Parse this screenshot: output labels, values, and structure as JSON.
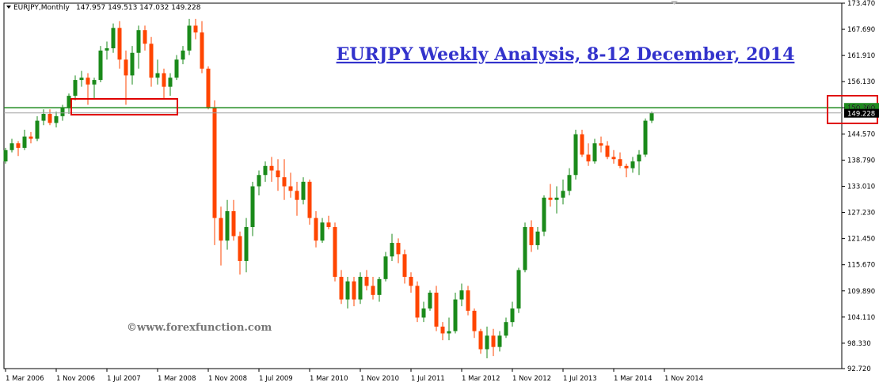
{
  "header": {
    "symbol": "EURJPY,Monthly",
    "ohlc": "147.957 149.513 147.032 149.228"
  },
  "colors": {
    "bull": "#1a8a1a",
    "bear": "#ff4500",
    "resistance_line": "#1e8a1e",
    "current_line": "#a0a0a0",
    "highlight_box": "#e00000",
    "title": "#3333cc",
    "watermark": "#777777"
  },
  "icons": {
    "collapse_marker": "triangle-down-icon",
    "top_marker": "triangle-down-icon"
  },
  "chart_data": {
    "type": "candlestick",
    "title": "EURJPY Weekly Analysis, 8-12 December, 2014",
    "watermark": "©www.forexfunction.com",
    "y_ticks": [
      "173.470",
      "167.690",
      "161.910",
      "156.130",
      "150.360",
      "144.570",
      "138.790",
      "133.010",
      "127.230",
      "121.450",
      "115.670",
      "109.890",
      "104.110",
      "98.330",
      "92.720"
    ],
    "ylim": [
      92.72,
      173.47
    ],
    "x_ticks": [
      "1 Mar 2006",
      "1 Nov 2006",
      "1 Jul 2007",
      "1 Mar 2008",
      "1 Nov 2008",
      "1 Jul 2009",
      "1 Mar 2010",
      "1 Nov 2010",
      "1 Jul 2011",
      "1 Mar 2012",
      "1 Nov 2012",
      "1 Jul 2013",
      "1 Mar 2014",
      "1 Nov 2014"
    ],
    "resistance_level": 150.36,
    "current_price": 149.228,
    "price_labels": [
      "150.360",
      "149.228"
    ],
    "ohlc": [
      [
        138.5,
        141.5,
        138.0,
        141.0
      ],
      [
        141.0,
        143.5,
        140.5,
        142.5
      ],
      [
        142.5,
        143.0,
        139.7,
        141.5
      ],
      [
        141.5,
        145.5,
        141.0,
        144.0
      ],
      [
        144.0,
        145.0,
        142.5,
        143.5
      ],
      [
        143.5,
        148.5,
        143.0,
        147.5
      ],
      [
        147.5,
        150.0,
        146.5,
        149.0
      ],
      [
        149.0,
        150.0,
        146.5,
        147.0
      ],
      [
        147.0,
        149.5,
        146.0,
        148.5
      ],
      [
        148.5,
        151.0,
        147.5,
        150.5
      ],
      [
        150.5,
        153.5,
        149.0,
        153.0
      ],
      [
        153.0,
        157.5,
        152.0,
        156.5
      ],
      [
        156.5,
        158.5,
        155.0,
        157.0
      ],
      [
        157.0,
        158.0,
        151.0,
        155.5
      ],
      [
        155.5,
        157.0,
        152.5,
        156.5
      ],
      [
        156.5,
        164.0,
        156.0,
        163.0
      ],
      [
        163.0,
        165.0,
        161.0,
        163.5
      ],
      [
        163.5,
        169.0,
        162.5,
        168.0
      ],
      [
        168.0,
        169.5,
        159.0,
        161.0
      ],
      [
        161.0,
        163.0,
        151.0,
        157.5
      ],
      [
        157.5,
        164.0,
        155.5,
        162.5
      ],
      [
        162.5,
        168.5,
        159.0,
        167.5
      ],
      [
        167.5,
        168.5,
        163.0,
        164.5
      ],
      [
        164.5,
        166.0,
        155.0,
        157.0
      ],
      [
        157.0,
        161.0,
        155.5,
        158.0
      ],
      [
        158.0,
        159.0,
        152.5,
        155.0
      ],
      [
        155.0,
        158.0,
        153.0,
        157.0
      ],
      [
        157.0,
        162.0,
        156.5,
        161.0
      ],
      [
        161.0,
        164.0,
        160.0,
        163.0
      ],
      [
        163.0,
        170.0,
        162.0,
        168.5
      ],
      [
        168.5,
        170.0,
        165.5,
        167.0
      ],
      [
        167.0,
        169.5,
        158.0,
        159.0
      ],
      [
        159.0,
        159.5,
        150.0,
        150.5
      ],
      [
        150.5,
        152.0,
        120.0,
        126.0
      ],
      [
        126.0,
        128.5,
        115.5,
        121.0
      ],
      [
        121.0,
        130.0,
        119.0,
        127.5
      ],
      [
        127.5,
        130.0,
        121.0,
        122.0
      ],
      [
        122.0,
        123.0,
        113.5,
        116.5
      ],
      [
        116.5,
        126.0,
        114.0,
        124.0
      ],
      [
        124.0,
        134.0,
        122.0,
        133.0
      ],
      [
        133.0,
        136.5,
        131.0,
        135.5
      ],
      [
        135.5,
        138.5,
        134.0,
        137.5
      ],
      [
        137.5,
        139.5,
        134.0,
        136.5
      ],
      [
        136.5,
        139.0,
        132.0,
        135.0
      ],
      [
        135.0,
        139.0,
        130.0,
        133.0
      ],
      [
        133.0,
        136.0,
        130.5,
        132.0
      ],
      [
        132.0,
        134.0,
        126.5,
        130.0
      ],
      [
        130.0,
        135.0,
        129.0,
        134.0
      ],
      [
        134.0,
        134.5,
        124.5,
        126.0
      ],
      [
        126.0,
        127.5,
        119.5,
        121.0
      ],
      [
        121.0,
        126.0,
        120.5,
        125.0
      ],
      [
        125.0,
        126.5,
        123.5,
        124.0
      ],
      [
        124.0,
        125.0,
        112.0,
        113.0
      ],
      [
        113.0,
        114.5,
        107.0,
        108.0
      ],
      [
        108.0,
        113.0,
        106.0,
        112.0
      ],
      [
        112.0,
        113.0,
        106.5,
        108.0
      ],
      [
        108.0,
        114.0,
        107.0,
        113.0
      ],
      [
        113.0,
        114.5,
        110.0,
        111.0
      ],
      [
        111.0,
        113.0,
        108.0,
        109.0
      ],
      [
        109.0,
        113.0,
        107.5,
        112.5
      ],
      [
        112.5,
        118.5,
        112.0,
        117.5
      ],
      [
        117.5,
        122.5,
        116.5,
        120.5
      ],
      [
        120.5,
        121.5,
        116.0,
        118.0
      ],
      [
        118.0,
        119.0,
        111.5,
        113.0
      ],
      [
        113.0,
        114.0,
        109.5,
        111.0
      ],
      [
        111.0,
        112.0,
        103.0,
        104.0
      ],
      [
        104.0,
        107.5,
        103.0,
        106.0
      ],
      [
        106.0,
        110.0,
        105.5,
        109.5
      ],
      [
        109.5,
        111.0,
        101.0,
        102.0
      ],
      [
        102.0,
        103.0,
        99.0,
        100.5
      ],
      [
        100.5,
        104.0,
        99.0,
        101.0
      ],
      [
        101.0,
        109.5,
        100.5,
        108.0
      ],
      [
        108.0,
        111.5,
        106.5,
        110.0
      ],
      [
        110.0,
        111.0,
        104.5,
        105.5
      ],
      [
        105.5,
        106.0,
        99.5,
        101.0
      ],
      [
        101.0,
        101.5,
        96.0,
        97.0
      ],
      [
        97.0,
        102.0,
        95.0,
        100.0
      ],
      [
        100.0,
        101.5,
        95.5,
        97.5
      ],
      [
        97.5,
        101.0,
        96.5,
        100.0
      ],
      [
        100.0,
        104.0,
        99.5,
        103.0
      ],
      [
        103.0,
        107.5,
        102.0,
        106.0
      ],
      [
        106.0,
        115.0,
        105.0,
        114.5
      ],
      [
        114.5,
        125.0,
        114.0,
        124.0
      ],
      [
        124.0,
        125.5,
        118.5,
        120.0
      ],
      [
        120.0,
        124.0,
        119.0,
        123.0
      ],
      [
        123.0,
        131.0,
        122.0,
        130.5
      ],
      [
        130.5,
        133.5,
        128.5,
        130.0
      ],
      [
        130.0,
        133.0,
        127.0,
        130.5
      ],
      [
        130.5,
        134.5,
        129.0,
        132.0
      ],
      [
        132.0,
        137.0,
        131.0,
        135.5
      ],
      [
        135.5,
        145.5,
        134.5,
        144.5
      ],
      [
        144.5,
        145.5,
        139.5,
        140.0
      ],
      [
        140.0,
        142.5,
        137.5,
        138.5
      ],
      [
        138.5,
        143.5,
        138.0,
        142.5
      ],
      [
        142.5,
        144.0,
        140.5,
        142.0
      ],
      [
        142.0,
        143.0,
        139.0,
        139.5
      ],
      [
        139.5,
        141.0,
        138.0,
        139.0
      ],
      [
        139.0,
        140.5,
        137.0,
        137.5
      ],
      [
        137.5,
        138.0,
        135.0,
        137.0
      ],
      [
        137.0,
        139.5,
        136.0,
        138.5
      ],
      [
        138.5,
        141.0,
        135.5,
        140.0
      ],
      [
        140.0,
        148.0,
        139.5,
        147.5
      ],
      [
        147.5,
        149.5,
        147.0,
        149.2
      ]
    ],
    "highlight_boxes": [
      "2007 support zone",
      "current price area"
    ]
  }
}
